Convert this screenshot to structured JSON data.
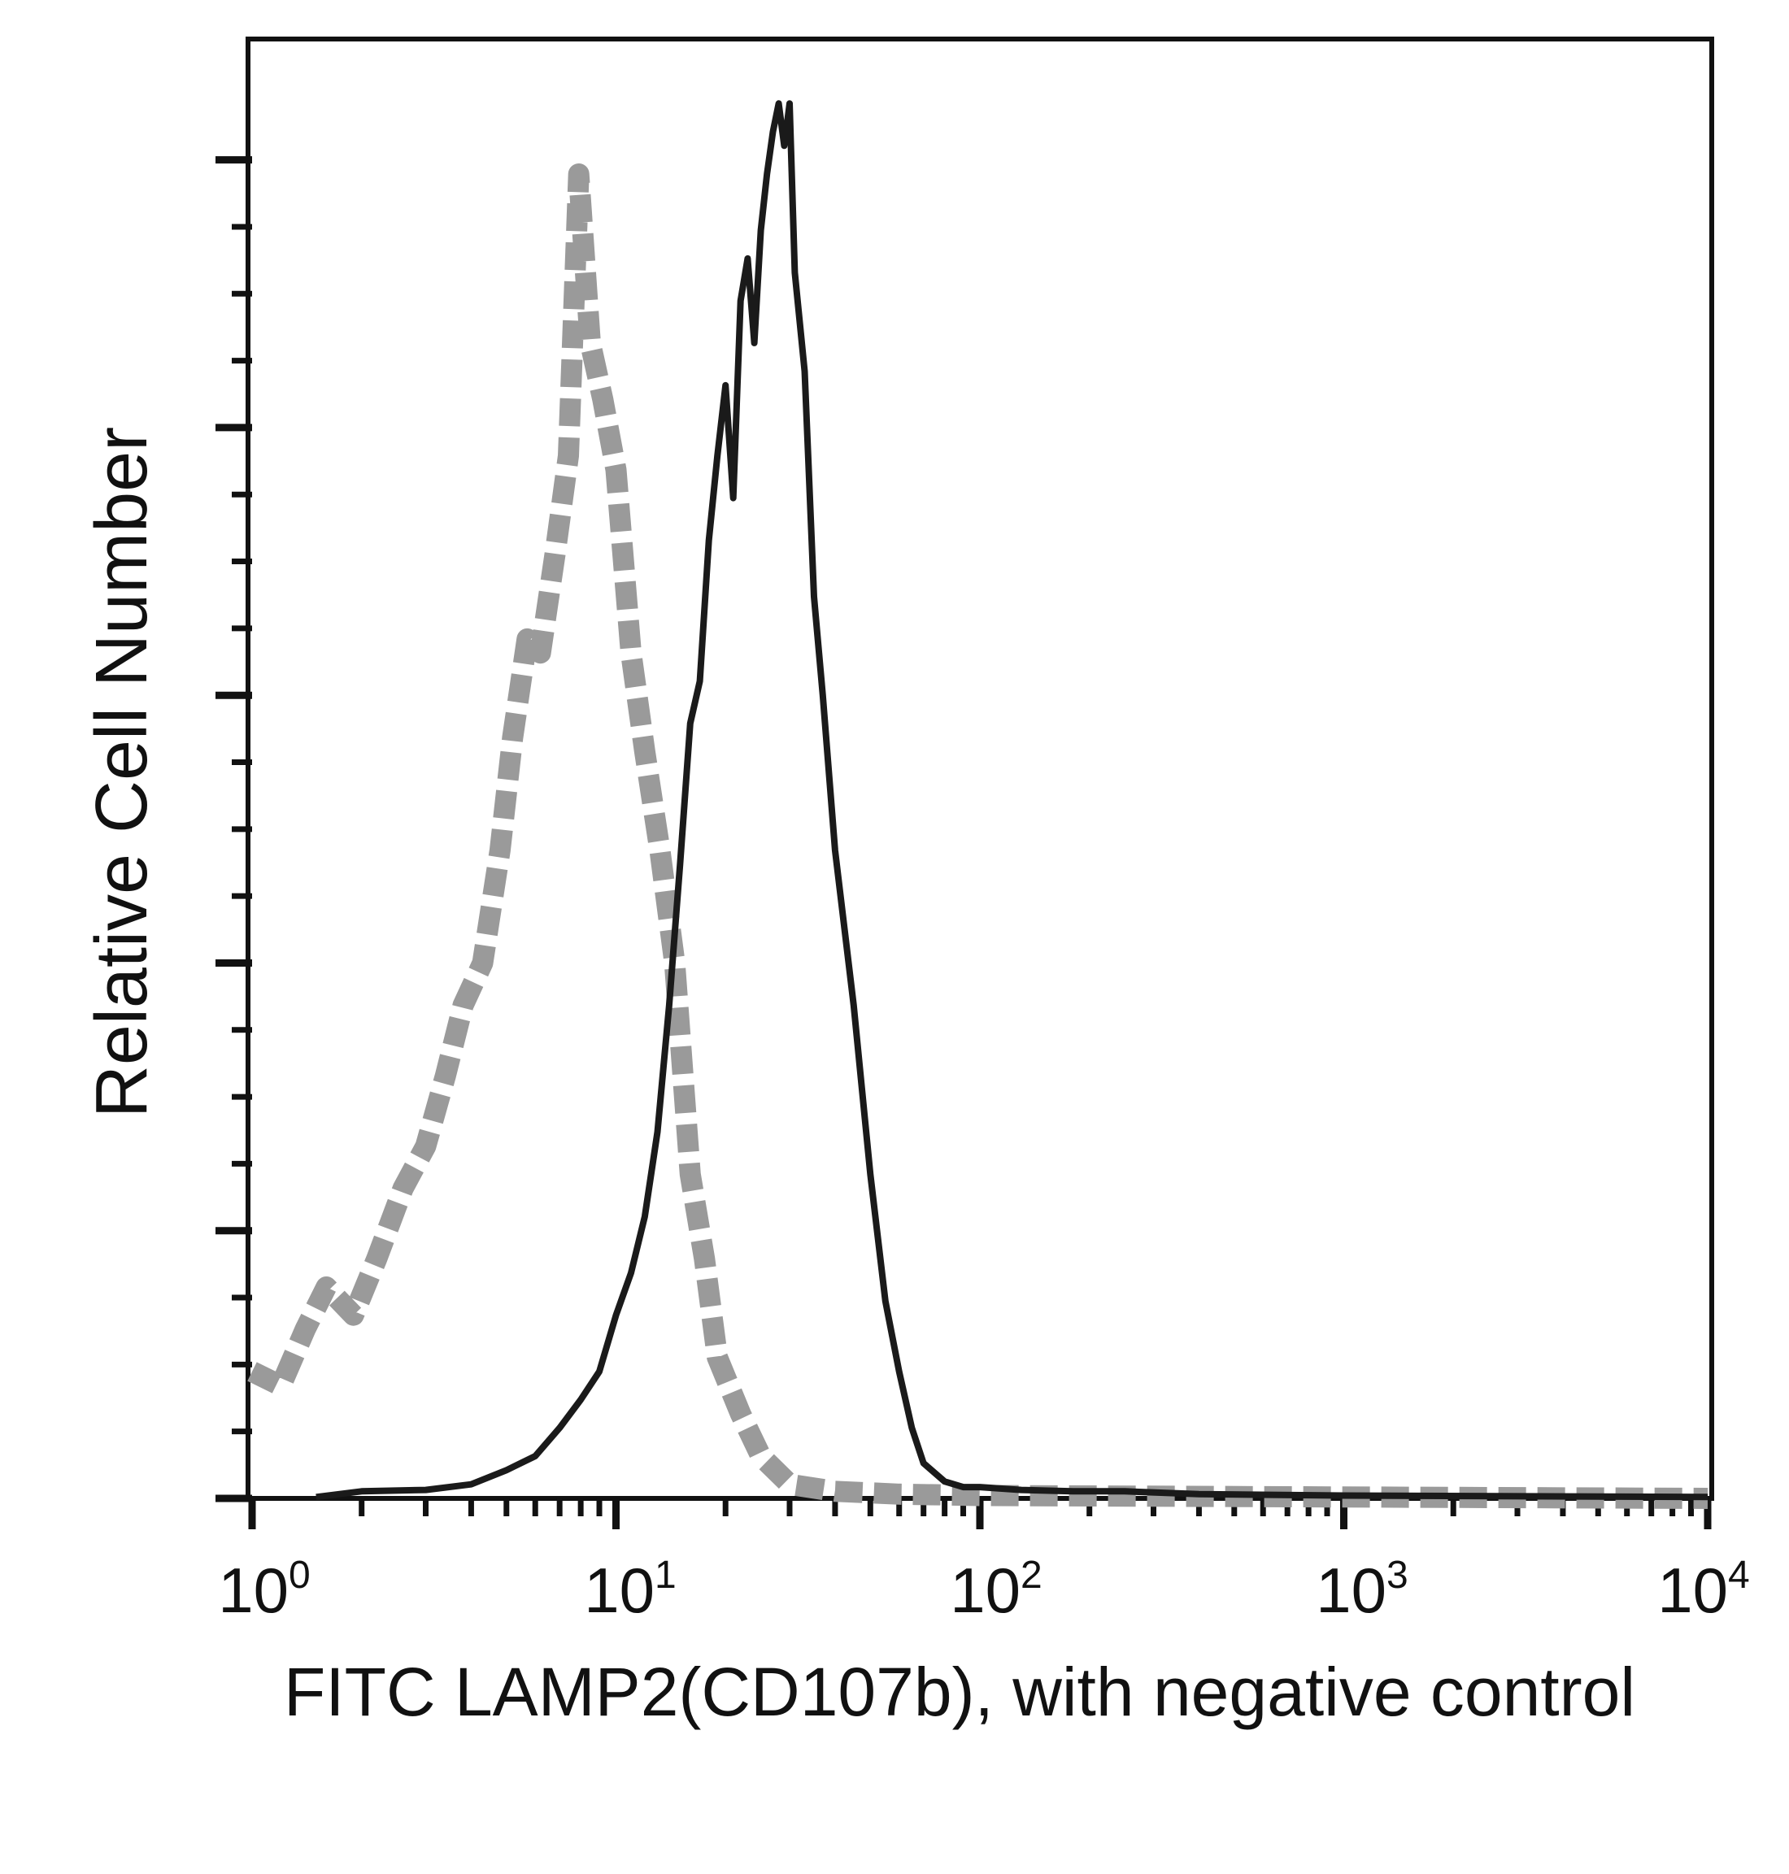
{
  "chart_data": {
    "type": "histogram",
    "xlabel": "FITC LAMP2(CD107b), with negative control",
    "ylabel": "Relative Cell Number",
    "xscale": "log",
    "xlim": [
      1,
      10000
    ],
    "ylim": [
      0,
      100
    ],
    "x_tick_labels": [
      {
        "base": "10",
        "exp": "0"
      },
      {
        "base": "10",
        "exp": "1"
      },
      {
        "base": "10",
        "exp": "2"
      },
      {
        "base": "10",
        "exp": "3"
      },
      {
        "base": "10",
        "exp": "4"
      }
    ],
    "y_major_ticks": [
      0,
      19,
      38,
      57,
      76,
      95
    ],
    "series": [
      {
        "style": "dashed",
        "color": "#9a9a9a",
        "points": [
          [
            1.0,
            9
          ],
          [
            1.2,
            8
          ],
          [
            1.4,
            12
          ],
          [
            1.6,
            15
          ],
          [
            1.9,
            13
          ],
          [
            2.2,
            17
          ],
          [
            2.6,
            22
          ],
          [
            3.0,
            25
          ],
          [
            3.4,
            30
          ],
          [
            3.8,
            35
          ],
          [
            4.3,
            38
          ],
          [
            4.8,
            46
          ],
          [
            5.2,
            54
          ],
          [
            5.7,
            61
          ],
          [
            6.2,
            60
          ],
          [
            6.8,
            67
          ],
          [
            7.4,
            74
          ],
          [
            7.9,
            94
          ],
          [
            8.5,
            82
          ],
          [
            9.2,
            78
          ],
          [
            10.0,
            73
          ],
          [
            11.0,
            60
          ],
          [
            12.0,
            53
          ],
          [
            13.2,
            46
          ],
          [
            14.5,
            38
          ],
          [
            16.0,
            23
          ],
          [
            17.5,
            17
          ],
          [
            19.0,
            10
          ],
          [
            22.0,
            6
          ],
          [
            25.0,
            3
          ],
          [
            30.0,
            1
          ],
          [
            40.0,
            0.5
          ],
          [
            60.0,
            0.3
          ],
          [
            100.0,
            0.2
          ],
          [
            10000.0,
            0
          ]
        ]
      },
      {
        "style": "solid",
        "color": "#1a1a1a",
        "points": [
          [
            1.5,
            0.1
          ],
          [
            2.0,
            0.5
          ],
          [
            3.0,
            0.6
          ],
          [
            4.0,
            1
          ],
          [
            5.0,
            2
          ],
          [
            6.0,
            3
          ],
          [
            7.0,
            5
          ],
          [
            8.0,
            7
          ],
          [
            9.0,
            9
          ],
          [
            10.0,
            13
          ],
          [
            11.0,
            16
          ],
          [
            12.0,
            20
          ],
          [
            13.0,
            26
          ],
          [
            14.0,
            35
          ],
          [
            15.0,
            45
          ],
          [
            16.0,
            55
          ],
          [
            17.0,
            58
          ],
          [
            18.0,
            68
          ],
          [
            19.0,
            74
          ],
          [
            20.0,
            79
          ],
          [
            21.0,
            71
          ],
          [
            22.0,
            85
          ],
          [
            23.0,
            88
          ],
          [
            24.0,
            82
          ],
          [
            25.0,
            90
          ],
          [
            26.0,
            94
          ],
          [
            27.0,
            97
          ],
          [
            28.0,
            99
          ],
          [
            29.0,
            96
          ],
          [
            30.0,
            99
          ],
          [
            31.0,
            87
          ],
          [
            33.0,
            80
          ],
          [
            35.0,
            64
          ],
          [
            37.0,
            57
          ],
          [
            40.0,
            46
          ],
          [
            45.0,
            35
          ],
          [
            50.0,
            23
          ],
          [
            55.0,
            14
          ],
          [
            60.0,
            9
          ],
          [
            65.0,
            5
          ],
          [
            70.0,
            2.5
          ],
          [
            80.0,
            1.2
          ],
          [
            90.0,
            0.8
          ],
          [
            100.0,
            0.8
          ],
          [
            130.0,
            0.6
          ],
          [
            180.0,
            0.5
          ],
          [
            250.0,
            0.5
          ],
          [
            400.0,
            0.3
          ],
          [
            1000.0,
            0.2
          ],
          [
            10000.0,
            0.1
          ]
        ]
      }
    ]
  }
}
